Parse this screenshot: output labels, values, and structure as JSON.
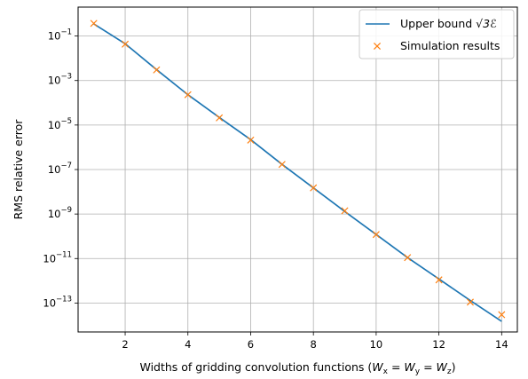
{
  "chart_data": {
    "type": "line",
    "xlabel_prefix": "Widths of gridding convolution functions (",
    "xlabel_math": "W_x = W_y = W_z",
    "xlabel_suffix": ")",
    "ylabel": "RMS relative error",
    "xlim": [
      0.5,
      14.5
    ],
    "ylim_exp": [
      -14.3,
      0.3
    ],
    "x_ticks": [
      2,
      4,
      6,
      8,
      10,
      12,
      14
    ],
    "y_tick_exponents": [
      -1,
      -3,
      -5,
      -7,
      -9,
      -11,
      -13
    ],
    "y_scale": "log",
    "grid": true,
    "legend_position": "top-right",
    "series": [
      {
        "name": "Upper bound √3ℰ",
        "kind": "line",
        "color": "#1f77b4",
        "x": [
          1,
          2,
          3,
          4,
          5,
          6,
          7,
          8,
          9,
          10,
          11,
          12,
          13,
          14
        ],
        "y": [
          0.35,
          0.045,
          0.0031,
          0.00023,
          2.2e-05,
          2.2e-06,
          1.7e-07,
          1.5e-08,
          1.3e-09,
          1.2e-10,
          1.1e-11,
          1.2e-12,
          1.3e-13,
          1.5e-14
        ]
      },
      {
        "name": "Simulation results",
        "kind": "marker",
        "marker": "x",
        "color": "#ff7f0e",
        "x": [
          1,
          2,
          3,
          4,
          5,
          6,
          7,
          8,
          9,
          10,
          11,
          12,
          13,
          14
        ],
        "y": [
          0.37,
          0.043,
          0.003,
          0.00023,
          2.1e-05,
          2.1e-06,
          1.7e-07,
          1.5e-08,
          1.4e-09,
          1.2e-10,
          1.1e-11,
          1.1e-12,
          1.1e-13,
          3e-14
        ]
      }
    ],
    "legend": {
      "line_label": "Upper bound",
      "line_label_math": "√3ℰ",
      "marker_label": "Simulation results"
    }
  }
}
